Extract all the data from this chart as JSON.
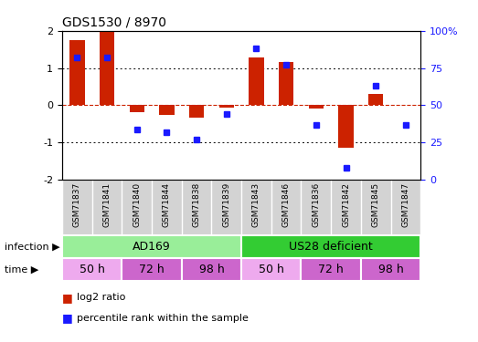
{
  "title": "GDS1530 / 8970",
  "samples": [
    "GSM71837",
    "GSM71841",
    "GSM71840",
    "GSM71844",
    "GSM71838",
    "GSM71839",
    "GSM71843",
    "GSM71846",
    "GSM71836",
    "GSM71842",
    "GSM71845",
    "GSM71847"
  ],
  "log2_ratio": [
    1.75,
    1.97,
    -0.18,
    -0.25,
    -0.32,
    -0.07,
    1.28,
    1.15,
    -0.08,
    -1.15,
    0.3,
    0.0
  ],
  "pct_rank": [
    82,
    82,
    34,
    32,
    27,
    44,
    88,
    77,
    37,
    8,
    63,
    37
  ],
  "ylim_left": [
    -2,
    2
  ],
  "ylim_right": [
    0,
    100
  ],
  "yticks_left": [
    -2,
    -1,
    0,
    1,
    2
  ],
  "yticks_right": [
    0,
    25,
    50,
    75,
    100
  ],
  "bar_color": "#cc2200",
  "dot_color": "#1a1aff",
  "zero_line_color": "#cc2200",
  "grid_color": "#000000",
  "infection_groups": [
    {
      "label": "AD169",
      "start": 0,
      "end": 6,
      "color": "#99ee99"
    },
    {
      "label": "US28 deficient",
      "start": 6,
      "end": 12,
      "color": "#33cc33"
    }
  ],
  "time_groups": [
    {
      "label": "50 h",
      "start": 0,
      "end": 2,
      "color": "#eeaaee"
    },
    {
      "label": "72 h",
      "start": 2,
      "end": 4,
      "color": "#cc66cc"
    },
    {
      "label": "98 h",
      "start": 4,
      "end": 6,
      "color": "#cc66cc"
    },
    {
      "label": "50 h",
      "start": 6,
      "end": 8,
      "color": "#eeaaee"
    },
    {
      "label": "72 h",
      "start": 8,
      "end": 10,
      "color": "#cc66cc"
    },
    {
      "label": "98 h",
      "start": 10,
      "end": 12,
      "color": "#cc66cc"
    }
  ],
  "infection_label": "infection",
  "time_label": "time",
  "legend_bar": "log2 ratio",
  "legend_dot": "percentile rank within the sample",
  "bg_color": "#ffffff",
  "plot_bg_color": "#ffffff"
}
